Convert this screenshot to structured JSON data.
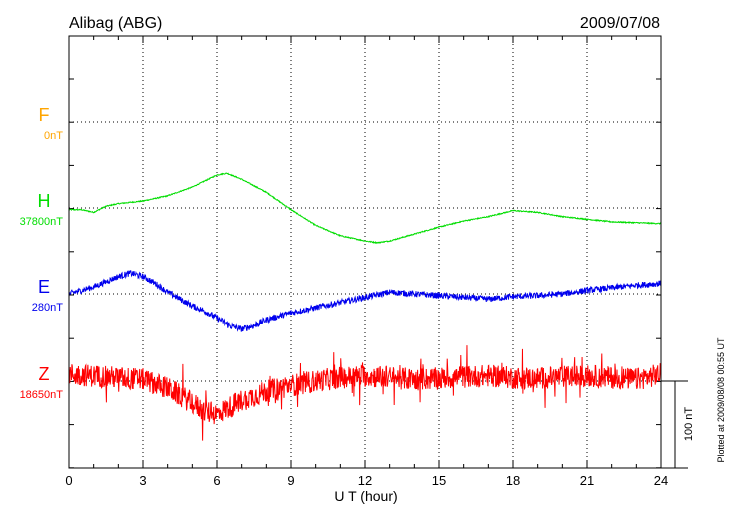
{
  "chart_data": {
    "type": "line",
    "title_left": "Alibag (ABG)",
    "title_right": "2009/07/08",
    "xlabel": "U T (hour)",
    "xlim": [
      0,
      24
    ],
    "x_ticks": [
      "0",
      "3",
      "6",
      "9",
      "12",
      "15",
      "18",
      "21",
      "24"
    ],
    "scale_label": "100 nT",
    "plotted_note": "Plotted at 2009/08/08 00:55 UT",
    "series": [
      {
        "key": "F",
        "name": "F",
        "baseline": "0nT",
        "color": "#ffa500",
        "x": [],
        "values": []
      },
      {
        "key": "H",
        "name": "H",
        "baseline": "37800nT",
        "color": "#00dd00",
        "noise": 0.6,
        "x": [
          0,
          0.5,
          1,
          1.5,
          2,
          3,
          4,
          5,
          6,
          6.4,
          7,
          8,
          9,
          10,
          11,
          12,
          12.5,
          13,
          14,
          15,
          16,
          17,
          18,
          19,
          20,
          21,
          22,
          23,
          24
        ],
        "values": [
          -2,
          -2,
          -5,
          2,
          5,
          8,
          14,
          24,
          38,
          40,
          33,
          18,
          -2,
          -20,
          -32,
          -38,
          -40,
          -38,
          -30,
          -22,
          -15,
          -10,
          -3,
          -5,
          -10,
          -13,
          -16,
          -17,
          -18
        ]
      },
      {
        "key": "E",
        "name": "E",
        "baseline": "280nT",
        "color": "#0000ee",
        "noise": 3.5,
        "x": [
          0,
          0.5,
          1,
          1.5,
          2,
          2.5,
          3,
          3.5,
          4,
          4.5,
          5,
          5.5,
          6,
          6.5,
          7,
          7.5,
          8,
          9,
          10,
          11,
          12,
          13,
          14,
          15,
          16,
          17,
          18,
          19,
          20,
          21,
          22,
          23,
          24
        ],
        "values": [
          0,
          4,
          8,
          14,
          20,
          24,
          20,
          12,
          2,
          -6,
          -14,
          -20,
          -28,
          -36,
          -40,
          -36,
          -30,
          -22,
          -16,
          -10,
          -4,
          2,
          0,
          -2,
          -4,
          -6,
          -3,
          -2,
          0,
          4,
          7,
          10,
          12
        ]
      },
      {
        "key": "Z",
        "name": "Z",
        "baseline": "18650nT",
        "color": "#ff0000",
        "noise": 13,
        "x": [
          0,
          1,
          2,
          3,
          4,
          5,
          5.5,
          6,
          6.5,
          7,
          8,
          9,
          10,
          11,
          12,
          13,
          14,
          15,
          16,
          17,
          18,
          19,
          20,
          21,
          22,
          23,
          24
        ],
        "values": [
          8,
          6,
          4,
          2,
          -8,
          -25,
          -35,
          -38,
          -30,
          -22,
          -12,
          -5,
          0,
          4,
          6,
          4,
          2,
          3,
          5,
          6,
          4,
          3,
          5,
          6,
          4,
          2,
          8
        ]
      }
    ]
  }
}
